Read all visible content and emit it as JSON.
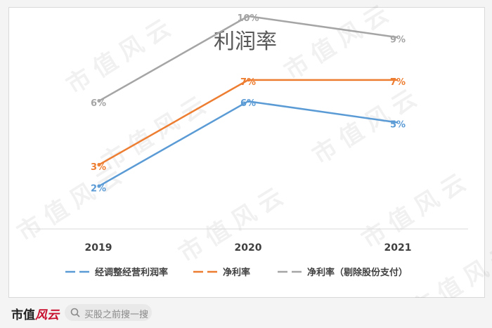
{
  "chart_data": {
    "type": "line",
    "title": "利润率",
    "categories": [
      "2019",
      "2020",
      "2021"
    ],
    "series": [
      {
        "name": "经调整经营利润率",
        "values": [
          2,
          6,
          5
        ],
        "labels": [
          "2%",
          "6%",
          "5%"
        ],
        "color": "#5b9bd5"
      },
      {
        "name": "净利率",
        "values": [
          3,
          7,
          7
        ],
        "labels": [
          "3%",
          "7%",
          "7%"
        ],
        "color": "#ed7d31"
      },
      {
        "name": "净利率（剔除股份支付）",
        "values": [
          6,
          10,
          9
        ],
        "labels": [
          "6%",
          "10%",
          "9%"
        ],
        "color": "#a5a5a5"
      }
    ],
    "ylim": [
      0,
      12
    ],
    "grid": false,
    "legend": "bottom"
  },
  "watermark": "市值风云",
  "footer": {
    "brand_text": "市值",
    "brand_logo": "风云",
    "search_placeholder": "买股之前搜一搜",
    "search_icon": "search-icon"
  }
}
